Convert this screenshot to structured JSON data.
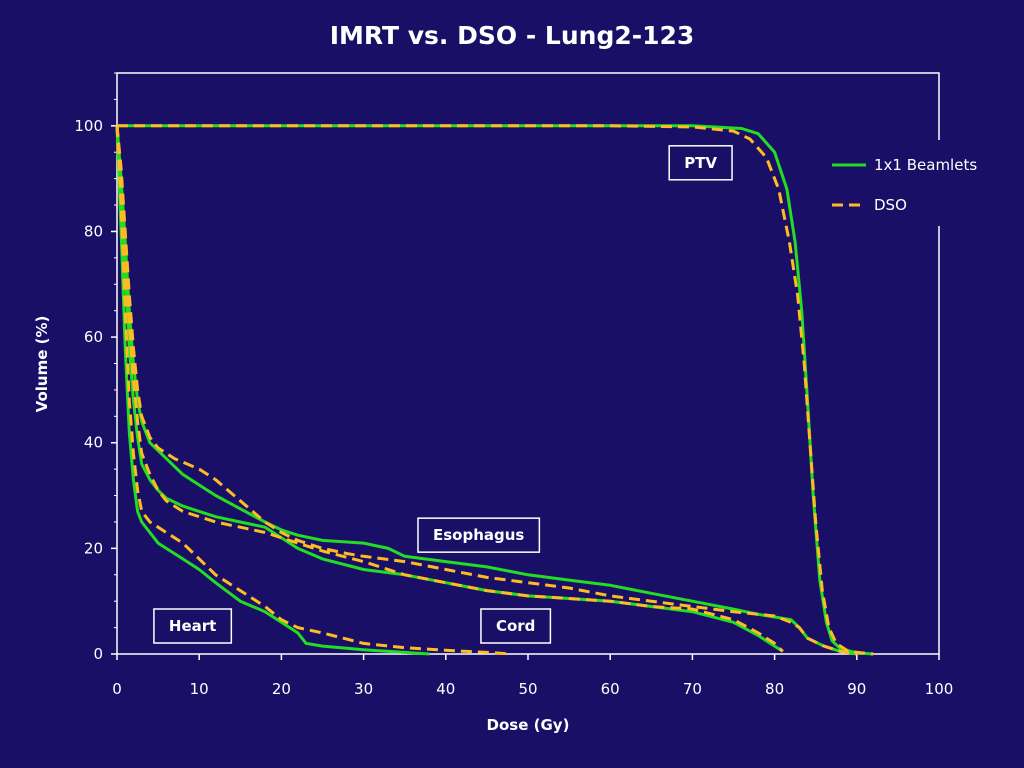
{
  "chart_data": {
    "type": "line",
    "title": "IMRT vs. DSO - Lung2-123",
    "xlabel": "Dose (Gy)",
    "ylabel": "Volume (%)",
    "xlim": [
      0,
      100
    ],
    "ylim": [
      0,
      110
    ],
    "xticks": [
      0,
      10,
      20,
      30,
      40,
      50,
      60,
      70,
      80,
      90,
      100
    ],
    "yticks": [
      0,
      20,
      40,
      60,
      80,
      100
    ],
    "grid": false,
    "legend_position": "top-right",
    "legend": [
      {
        "label": "1x1 Beamlets",
        "color": "#22dd22",
        "style": "solid"
      },
      {
        "label": "DSO",
        "color": "#ffbb22",
        "style": "dashed"
      }
    ],
    "annotations": [
      {
        "text": "PTV",
        "x": 71,
        "y": 93
      },
      {
        "text": "Esophagus",
        "x": 44,
        "y": 22.5
      },
      {
        "text": "Cord",
        "x": 48.5,
        "y": 5.3
      },
      {
        "text": "Heart",
        "x": 9.2,
        "y": 5.3
      }
    ],
    "series": [
      {
        "name": "1x1 Beamlets",
        "structure": "PTV",
        "style": "solid",
        "color": "#22dd22",
        "points": [
          [
            0,
            100
          ],
          [
            30,
            100
          ],
          [
            60,
            100
          ],
          [
            70,
            100
          ],
          [
            76,
            99.5
          ],
          [
            78,
            98.5
          ],
          [
            80,
            95
          ],
          [
            81.5,
            88
          ],
          [
            82.5,
            78
          ],
          [
            83.3,
            65
          ],
          [
            84,
            48
          ],
          [
            84.7,
            30
          ],
          [
            85.5,
            14
          ],
          [
            86.3,
            6
          ],
          [
            87,
            2.5
          ],
          [
            88,
            1
          ],
          [
            90,
            0.2
          ],
          [
            92,
            0
          ]
        ]
      },
      {
        "name": "DSO",
        "structure": "PTV",
        "style": "dashed",
        "color": "#ffbb22",
        "points": [
          [
            0,
            100
          ],
          [
            30,
            100
          ],
          [
            60,
            100
          ],
          [
            70,
            99.8
          ],
          [
            75,
            99
          ],
          [
            77,
            97.5
          ],
          [
            79,
            94
          ],
          [
            80.5,
            88
          ],
          [
            81.8,
            78
          ],
          [
            82.8,
            68
          ],
          [
            83.6,
            55
          ],
          [
            84.3,
            40
          ],
          [
            85,
            25
          ],
          [
            85.8,
            12
          ],
          [
            86.6,
            5
          ],
          [
            87.5,
            2
          ],
          [
            89,
            0.5
          ],
          [
            92,
            0
          ]
        ]
      },
      {
        "name": "1x1 Beamlets",
        "structure": "Esophagus",
        "style": "solid",
        "color": "#22dd22",
        "points": [
          [
            0,
            100
          ],
          [
            0.5,
            90
          ],
          [
            1,
            78
          ],
          [
            1.5,
            65
          ],
          [
            2,
            55
          ],
          [
            2.5,
            48
          ],
          [
            3,
            44
          ],
          [
            4,
            40
          ],
          [
            6,
            37
          ],
          [
            8,
            34
          ],
          [
            10,
            32
          ],
          [
            12,
            30
          ],
          [
            15,
            27.5
          ],
          [
            18,
            25
          ],
          [
            20,
            23.5
          ],
          [
            22,
            22.5
          ],
          [
            25,
            21.5
          ],
          [
            30,
            21
          ],
          [
            33,
            20
          ],
          [
            35,
            18.5
          ],
          [
            40,
            17.5
          ],
          [
            45,
            16.5
          ],
          [
            50,
            15
          ],
          [
            55,
            14
          ],
          [
            60,
            13
          ],
          [
            65,
            11.5
          ],
          [
            70,
            10
          ],
          [
            75,
            8.5
          ],
          [
            78,
            7.5
          ],
          [
            80,
            7
          ],
          [
            82,
            6.5
          ],
          [
            83,
            5
          ],
          [
            84,
            3
          ],
          [
            86,
            1.5
          ],
          [
            88,
            0.5
          ],
          [
            90,
            0
          ]
        ]
      },
      {
        "name": "DSO",
        "structure": "Esophagus",
        "style": "dashed",
        "color": "#ffbb22",
        "points": [
          [
            0,
            100
          ],
          [
            0.5,
            92
          ],
          [
            1,
            80
          ],
          [
            1.5,
            68
          ],
          [
            2,
            58
          ],
          [
            2.5,
            50
          ],
          [
            3,
            45
          ],
          [
            4,
            41
          ],
          [
            5,
            39
          ],
          [
            7,
            37
          ],
          [
            10,
            35
          ],
          [
            12,
            33
          ],
          [
            15,
            29
          ],
          [
            18,
            25
          ],
          [
            20,
            23
          ],
          [
            22,
            21.5
          ],
          [
            25,
            20
          ],
          [
            28,
            19
          ],
          [
            30,
            18.5
          ],
          [
            35,
            17.5
          ],
          [
            40,
            16
          ],
          [
            45,
            14.5
          ],
          [
            50,
            13.5
          ],
          [
            55,
            12.5
          ],
          [
            60,
            11
          ],
          [
            65,
            10
          ],
          [
            70,
            9
          ],
          [
            75,
            8
          ],
          [
            80,
            7.2
          ],
          [
            82,
            6
          ],
          [
            83,
            5
          ],
          [
            84,
            3
          ],
          [
            86,
            1.5
          ],
          [
            88,
            0.5
          ],
          [
            90,
            0
          ]
        ]
      },
      {
        "name": "1x1 Beamlets",
        "structure": "Cord",
        "style": "solid",
        "color": "#22dd22",
        "points": [
          [
            0,
            100
          ],
          [
            0.5,
            88
          ],
          [
            1,
            72
          ],
          [
            1.5,
            58
          ],
          [
            2,
            48
          ],
          [
            2.5,
            41
          ],
          [
            3,
            36
          ],
          [
            4,
            33
          ],
          [
            5,
            31
          ],
          [
            6,
            29.5
          ],
          [
            8,
            28
          ],
          [
            10,
            27
          ],
          [
            12,
            26
          ],
          [
            15,
            25
          ],
          [
            18,
            24
          ],
          [
            20,
            22
          ],
          [
            22,
            20
          ],
          [
            25,
            18
          ],
          [
            30,
            16
          ],
          [
            35,
            15
          ],
          [
            40,
            13.5
          ],
          [
            45,
            12
          ],
          [
            50,
            11
          ],
          [
            55,
            10.5
          ],
          [
            60,
            10
          ],
          [
            65,
            9
          ],
          [
            70,
            8
          ],
          [
            75,
            6
          ],
          [
            78,
            3.5
          ],
          [
            80,
            1.5
          ],
          [
            81,
            0.5
          ]
        ]
      },
      {
        "name": "DSO",
        "structure": "Cord",
        "style": "dashed",
        "color": "#ffbb22",
        "points": [
          [
            0,
            100
          ],
          [
            0.5,
            90
          ],
          [
            1,
            75
          ],
          [
            1.5,
            62
          ],
          [
            2,
            52
          ],
          [
            2.5,
            44
          ],
          [
            3,
            38
          ],
          [
            4,
            34
          ],
          [
            5,
            31
          ],
          [
            6,
            29
          ],
          [
            8,
            27
          ],
          [
            10,
            26
          ],
          [
            12,
            25
          ],
          [
            15,
            24
          ],
          [
            18,
            23
          ],
          [
            20,
            22
          ],
          [
            22,
            21
          ],
          [
            25,
            19.5
          ],
          [
            30,
            17.5
          ],
          [
            35,
            15
          ],
          [
            40,
            13.5
          ],
          [
            45,
            12
          ],
          [
            50,
            11
          ],
          [
            55,
            10.5
          ],
          [
            60,
            10
          ],
          [
            65,
            9
          ],
          [
            70,
            8.5
          ],
          [
            75,
            6.5
          ],
          [
            78,
            4
          ],
          [
            80,
            2
          ],
          [
            81,
            0.5
          ]
        ]
      },
      {
        "name": "1x1 Beamlets",
        "structure": "Heart",
        "style": "solid",
        "color": "#22dd22",
        "points": [
          [
            0,
            100
          ],
          [
            0.5,
            80
          ],
          [
            1,
            58
          ],
          [
            1.5,
            42
          ],
          [
            2,
            33
          ],
          [
            2.5,
            27
          ],
          [
            3,
            25
          ],
          [
            4,
            23
          ],
          [
            5,
            21
          ],
          [
            6,
            20
          ],
          [
            8,
            18
          ],
          [
            10,
            16
          ],
          [
            12,
            13.5
          ],
          [
            15,
            10
          ],
          [
            18,
            8
          ],
          [
            20,
            6
          ],
          [
            22,
            4
          ],
          [
            23,
            2
          ],
          [
            25,
            1.5
          ],
          [
            30,
            0.8
          ],
          [
            35,
            0.3
          ],
          [
            38,
            0
          ]
        ]
      },
      {
        "name": "DSO",
        "structure": "Heart",
        "style": "dashed",
        "color": "#ffbb22",
        "points": [
          [
            0,
            100
          ],
          [
            0.5,
            85
          ],
          [
            1,
            65
          ],
          [
            1.5,
            48
          ],
          [
            2,
            38
          ],
          [
            2.5,
            31
          ],
          [
            3,
            27
          ],
          [
            4,
            25
          ],
          [
            5,
            24
          ],
          [
            6,
            23
          ],
          [
            8,
            21
          ],
          [
            10,
            18
          ],
          [
            12,
            15
          ],
          [
            15,
            12
          ],
          [
            18,
            9
          ],
          [
            20,
            6.5
          ],
          [
            22,
            5
          ],
          [
            25,
            4
          ],
          [
            30,
            2
          ],
          [
            35,
            1.2
          ],
          [
            40,
            0.7
          ],
          [
            45,
            0.3
          ],
          [
            48,
            0
          ]
        ]
      }
    ]
  }
}
